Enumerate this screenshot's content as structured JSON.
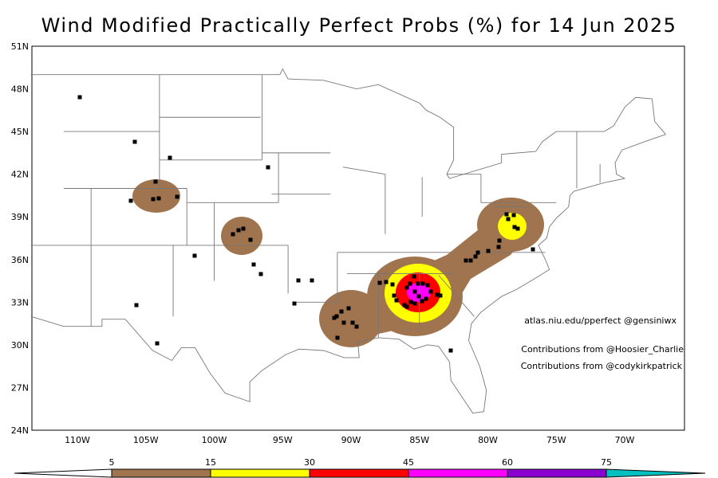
{
  "title": "Wind Modified Practically Perfect Probs (%) for 14 Jun 2025",
  "map": {
    "lat_labels": [
      "51N",
      "48N",
      "45N",
      "42N",
      "39N",
      "36N",
      "33N",
      "30N",
      "27N",
      "24N"
    ],
    "lon_labels": [
      "110W",
      "105W",
      "100W",
      "95W",
      "90W",
      "85W",
      "80W",
      "75W",
      "70W"
    ]
  },
  "credits": [
    "atlas.niu.edu/pperfect @gensiniwx",
    "Contributions from @Hoosier_Charlie",
    "Contributions from @codykirkpatrick"
  ],
  "colorbar": {
    "labels": [
      "5",
      "15",
      "30",
      "45",
      "60",
      "75"
    ]
  }
}
